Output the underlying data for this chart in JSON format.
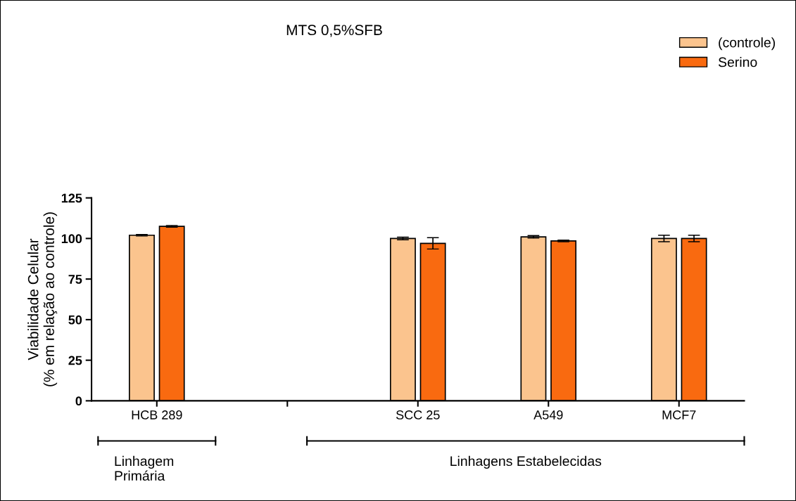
{
  "chart_data": {
    "type": "bar",
    "title": "MTS 0,5%SFB",
    "ylabel": "Viabilidade Celular\n(% em relação ao controle)",
    "categories": [
      "HCB 289",
      null,
      "SCC 25",
      "A549",
      "MCF7"
    ],
    "series": [
      {
        "name": "(controle)",
        "color": "#fbc48e",
        "values": [
          102,
          null,
          100,
          101,
          100
        ],
        "errors": [
          0.5,
          null,
          0.8,
          0.8,
          2
        ]
      },
      {
        "name": "Serino",
        "color": "#f96a10",
        "values": [
          107.5,
          null,
          97,
          98.5,
          100
        ],
        "errors": [
          0.5,
          null,
          3.5,
          0.5,
          2
        ]
      }
    ],
    "ylim": [
      0,
      125
    ],
    "yticks": [
      0,
      25,
      50,
      75,
      100,
      125
    ],
    "grid": false,
    "legend": "top right",
    "annotations": [
      "Linhagem\nPrimária",
      "Linhagens Estabelecidas"
    ]
  }
}
